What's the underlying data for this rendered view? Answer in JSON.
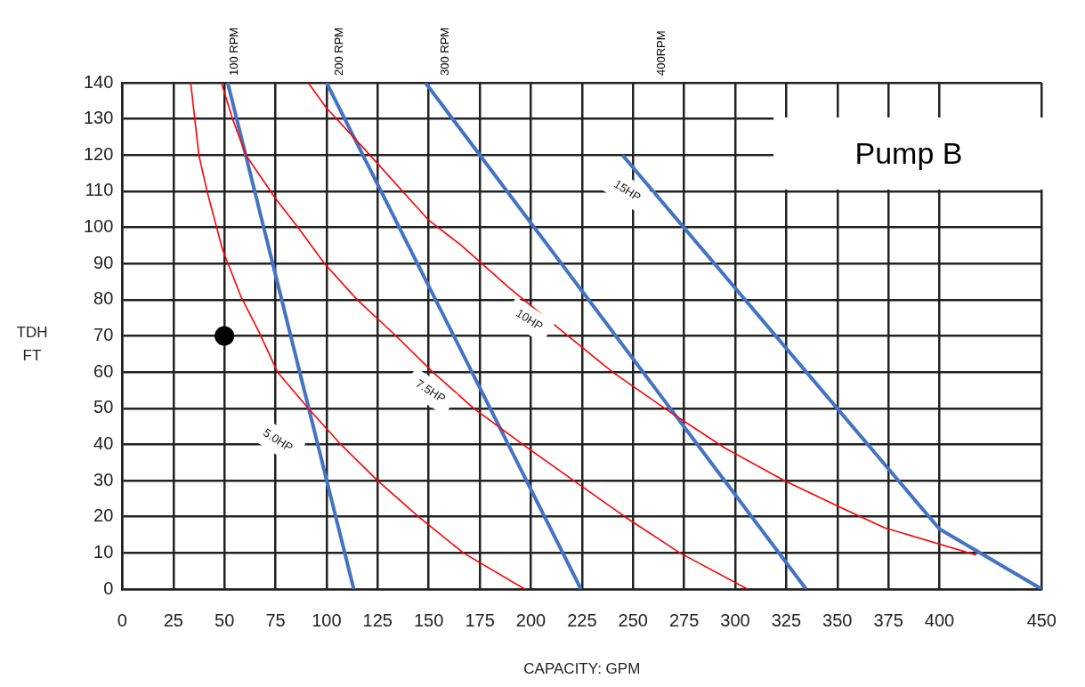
{
  "chart_data": {
    "type": "line",
    "title": "Pump B",
    "xlabel": "CAPACITY: GPM",
    "ylabel": "TDH\nFT",
    "xlim": [
      0,
      450
    ],
    "ylim": [
      0,
      140
    ],
    "xticks": [
      0,
      25,
      50,
      75,
      100,
      125,
      150,
      175,
      200,
      225,
      250,
      275,
      300,
      325,
      350,
      375,
      400,
      450
    ],
    "yticks": [
      0,
      10,
      20,
      30,
      40,
      50,
      60,
      70,
      80,
      90,
      100,
      110,
      120,
      130,
      140
    ],
    "grid": true,
    "legend": false,
    "series": [
      {
        "color": "#ff0000",
        "x": [
          33.5,
          37.5,
          41.5,
          49,
          58,
          67,
          76,
          91,
          107,
          125,
          145,
          167,
          197
        ],
        "values": [
          140,
          120,
          110,
          94,
          81,
          71,
          60,
          50,
          40,
          30,
          20,
          10,
          0
        ]
      },
      {
        "color": "#ff0000",
        "x": [
          48.5,
          54,
          60.5,
          75,
          86,
          99,
          115,
          134,
          152,
          172,
          196,
          221,
          246,
          273,
          306
        ],
        "values": [
          140,
          130,
          120,
          108,
          100,
          90,
          80,
          70,
          60,
          50,
          40,
          30,
          20,
          10,
          0
        ]
      },
      {
        "color": "#ff0000",
        "x": [
          91,
          100,
          118,
          150,
          166,
          190,
          216,
          240,
          268,
          295,
          324,
          350,
          373,
          418
        ],
        "values": [
          140,
          133,
          122,
          102,
          95,
          83,
          71,
          60,
          49,
          39,
          30,
          23,
          17,
          9.4
        ]
      },
      {
        "color": "#4472c4",
        "x": [
          51.6,
          113.3
        ],
        "values": [
          140,
          0
        ]
      },
      {
        "color": "#4472c4",
        "x": [
          100,
          224.5
        ],
        "values": [
          140,
          0
        ]
      },
      {
        "color": "#4472c4",
        "x": [
          148.4,
          334.7
        ],
        "values": [
          140,
          0
        ]
      },
      {
        "color": "#4472c4",
        "x": [
          244.8,
          400,
          450
        ],
        "values": [
          120,
          16.6,
          0
        ]
      },
      {
        "type": "scatter",
        "color": "#000000",
        "marker": "circle",
        "x": [
          50
        ],
        "values": [
          70
        ]
      }
    ],
    "annotations": [
      "100 RPM",
      "200 RPM",
      "300 RPM",
      "400RPM",
      "5.0HP",
      "7.5HP",
      "10HP",
      "15HP"
    ]
  }
}
